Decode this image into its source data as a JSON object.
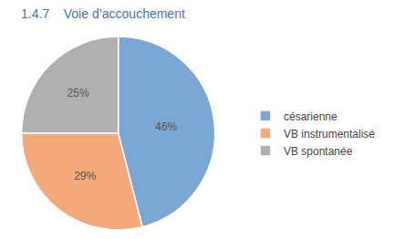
{
  "chart_data": {
    "type": "pie",
    "title": "1.4.7    Voie d’accouchement",
    "categories": [
      "césarienne",
      "VB instrumentalisé",
      "VB spontanée"
    ],
    "values": [
      46,
      29,
      25
    ],
    "value_labels": [
      "46%",
      "29%",
      "25%"
    ],
    "colors": [
      "#7ba7d4",
      "#f4a97a",
      "#b0b0b0"
    ],
    "data_labels": true,
    "legend": "right"
  }
}
